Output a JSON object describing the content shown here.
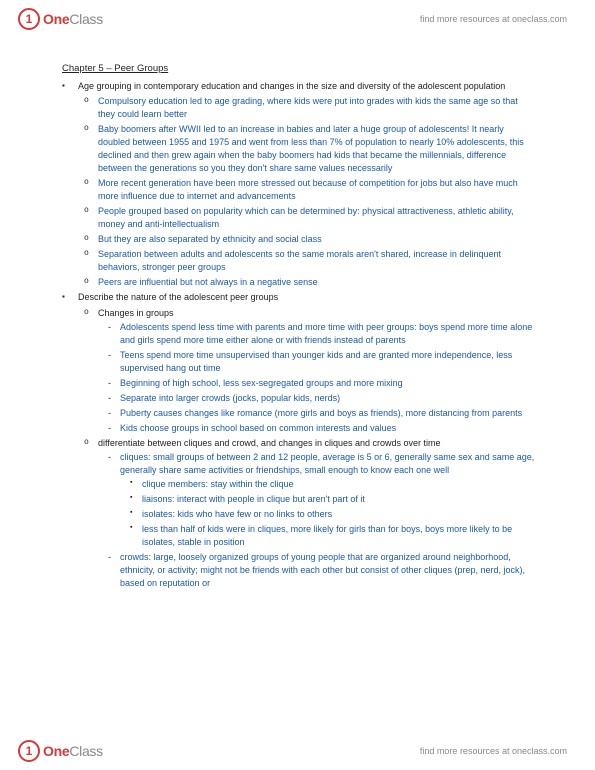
{
  "brand": {
    "one": "One",
    "class": "Class",
    "mark": "1"
  },
  "headerLink": "find more resources at oneclass.com",
  "chapterTitle": "Chapter 5 – Peer Groups",
  "lvl1": [
    {
      "text": "Age grouping in contemporary education and changes in the size and diversity of the adolescent population",
      "lvl2": [
        {
          "text": "Compulsory education led to age grading, where kids were put into grades with kids the same age so that they could learn better"
        },
        {
          "text": "Baby boomers after WWII led to an increase in babies and later a huge group of adolescents! It nearly doubled between 1955 and 1975 and went from less than 7% of population to nearly 10% adolescents, this declined and then grew again when the baby boomers had kids that became the millennials, difference between the generations so you they don't share same values necessarily"
        },
        {
          "text": "More recent generation have been more stressed out because of competition for jobs but also have much more influence due to internet and advancements"
        },
        {
          "text": "People grouped based on popularity which can be determined by: physical attractiveness, athletic ability, money and anti-intellectualism"
        },
        {
          "text": "But they are also separated by ethnicity and social class"
        },
        {
          "text": "Separation between adults and adolescents so the same morals aren't shared, increase in delinquent behaviors, stronger peer groups"
        },
        {
          "text": "Peers are influential but not always in a negative sense"
        }
      ]
    },
    {
      "text": "Describe the nature of the adolescent peer groups",
      "lvl2": [
        {
          "text": "Changes in groups",
          "black": true,
          "lvl3": [
            {
              "text": "Adolescents spend less time with parents and more time with peer groups: boys spend more time alone and girls spend more time either alone or with friends instead of parents"
            },
            {
              "text": "Teens spend more time unsupervised than younger kids and are granted more independence, less supervised hang out time"
            },
            {
              "text": "Beginning of high school, less sex-segregated groups and more mixing"
            },
            {
              "text": "Separate into larger crowds (jocks, popular kids, nerds)"
            },
            {
              "text": "Puberty causes changes like romance (more girls and boys as friends), more distancing from parents"
            },
            {
              "text": "Kids choose groups in school based on common interests and values"
            }
          ]
        },
        {
          "text": "differentiate between cliques and crowd, and changes in cliques and crowds over time",
          "black": true,
          "lvl3": [
            {
              "text": "cliques: small groups of between 2 and 12 people, average is 5 or 6, generally same sex and same age, generally share same activities or friendships, small enough to know each one well",
              "lvl4": [
                {
                  "text": "clique members: stay within the clique"
                },
                {
                  "text": "liaisons: interact with people in clique but aren't part of it"
                },
                {
                  "text": "isolates: kids who have few or no links to others"
                },
                {
                  "text": "less than half of kids were in cliques, more likely for girls than for boys, boys more likely to be isolates, stable in position"
                }
              ]
            },
            {
              "text": "crowds: large, loosely organized groups of young people that are organized around neighborhood, ethnicity, or activity; might not be friends with each other but consist of other cliques (prep, nerd, jock), based on reputation or"
            }
          ]
        }
      ]
    }
  ]
}
